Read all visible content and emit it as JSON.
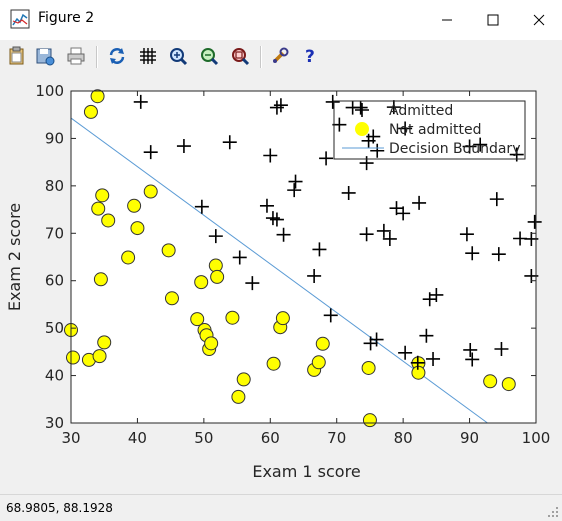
{
  "window": {
    "title": "Figure 2"
  },
  "toolbar": {
    "buttons": [
      "copy-icon",
      "save-icon",
      "print-icon",
      "refresh-icon",
      "grid-icon",
      "zoom-in-icon",
      "zoom-out-icon",
      "zoom-fit-icon",
      "settings-icon",
      "help-icon"
    ]
  },
  "status": {
    "coords": "68.9805,  88.1928"
  },
  "chart_data": {
    "type": "scatter",
    "xlabel": "Exam 1 score",
    "ylabel": "Exam 2 score",
    "xlim": [
      30,
      100
    ],
    "ylim": [
      30,
      100
    ],
    "xticks": [
      30,
      40,
      50,
      60,
      70,
      80,
      90,
      100
    ],
    "yticks": [
      30,
      40,
      50,
      60,
      70,
      80,
      90,
      100
    ],
    "grid": false,
    "legend_position": "top-right",
    "legend": [
      "Admitted",
      "Not admitted",
      "Decision Boundary"
    ],
    "colors": {
      "not_admitted": "#ffff00",
      "boundary": "#5b9bd5",
      "admitted": "#000000"
    },
    "series": [
      {
        "name": "Admitted",
        "marker": "plus",
        "points": [
          [
            40.5,
            97.7
          ],
          [
            42,
            87.1
          ],
          [
            47,
            88.4
          ],
          [
            49.7,
            75.6
          ],
          [
            51.8,
            69.4
          ],
          [
            53.9,
            89.2
          ],
          [
            55.4,
            64.9
          ],
          [
            57.3,
            59.5
          ],
          [
            59.5,
            75.8
          ],
          [
            60,
            86.4
          ],
          [
            60.4,
            73.2
          ],
          [
            61,
            72.9
          ],
          [
            61,
            96.5
          ],
          [
            61.6,
            97.0
          ],
          [
            62,
            69.7
          ],
          [
            63.6,
            79.1
          ],
          [
            63.8,
            80.9
          ],
          [
            66.6,
            61.0
          ],
          [
            67.4,
            66.6
          ],
          [
            68.4,
            85.8
          ],
          [
            69.1,
            52.7
          ],
          [
            69.4,
            97.7
          ],
          [
            70.4,
            92.9
          ],
          [
            71.8,
            78.5
          ],
          [
            72.4,
            96.5
          ],
          [
            73.6,
            96.5
          ],
          [
            74.5,
            84.8
          ],
          [
            74.5,
            69.8
          ],
          [
            74.8,
            89.5
          ],
          [
            75.5,
            90.4
          ],
          [
            76.1,
            87.4
          ],
          [
            75.1,
            46.8
          ],
          [
            76,
            47.6
          ],
          [
            77.1,
            70.5
          ],
          [
            78,
            68.8
          ],
          [
            78.6,
            96.6
          ],
          [
            79,
            75.3
          ],
          [
            80,
            74.2
          ],
          [
            80.3,
            44.8
          ],
          [
            80.3,
            92.1
          ],
          [
            82.2,
            42.7
          ],
          [
            82.4,
            76.4
          ],
          [
            83.5,
            48.4
          ],
          [
            84,
            56.1
          ],
          [
            84.5,
            43.5
          ],
          [
            85,
            57.0
          ],
          [
            89.6,
            69.8
          ],
          [
            90,
            88.3
          ],
          [
            90.1,
            45.4
          ],
          [
            90.4,
            65.8
          ],
          [
            90.4,
            43.4
          ],
          [
            91.6,
            88.7
          ],
          [
            94.1,
            77.2
          ],
          [
            94.4,
            65.6
          ],
          [
            94.8,
            45.6
          ],
          [
            97.1,
            86.6
          ],
          [
            97.6,
            68.9
          ],
          [
            99.3,
            68.8
          ],
          [
            99.3,
            61.0
          ],
          [
            99.8,
            72.4
          ]
        ]
      },
      {
        "name": "Not admitted",
        "marker": "circle",
        "points": [
          [
            30,
            49.6
          ],
          [
            30.3,
            43.8
          ],
          [
            32.7,
            43.3
          ],
          [
            33,
            95.6
          ],
          [
            34,
            98.9
          ],
          [
            34.1,
            75.2
          ],
          [
            34.3,
            44.1
          ],
          [
            34.5,
            60.3
          ],
          [
            34.7,
            78.0
          ],
          [
            35,
            47.0
          ],
          [
            35.6,
            72.7
          ],
          [
            38.6,
            64.9
          ],
          [
            39.5,
            75.8
          ],
          [
            40,
            71.1
          ],
          [
            42,
            78.8
          ],
          [
            44.7,
            66.4
          ],
          [
            45.2,
            56.3
          ],
          [
            49,
            51.9
          ],
          [
            49.6,
            59.7
          ],
          [
            50.1,
            49.6
          ],
          [
            50.4,
            48.5
          ],
          [
            50.8,
            45.6
          ],
          [
            51.1,
            46.8
          ],
          [
            51.8,
            63.2
          ],
          [
            52,
            60.8
          ],
          [
            54.3,
            52.2
          ],
          [
            55.2,
            35.5
          ],
          [
            56,
            39.2
          ],
          [
            60.5,
            42.5
          ],
          [
            61.5,
            50.2
          ],
          [
            61.9,
            52.1
          ],
          [
            66.6,
            41.2
          ],
          [
            67.3,
            42.8
          ],
          [
            67.9,
            46.7
          ],
          [
            74.8,
            41.6
          ],
          [
            75,
            30.6
          ],
          [
            82.3,
            42.6
          ],
          [
            82.3,
            40.6
          ],
          [
            93.1,
            38.8
          ],
          [
            95.9,
            38.2
          ]
        ]
      },
      {
        "name": "Decision Boundary",
        "marker": "line",
        "points": [
          [
            30,
            94.3
          ],
          [
            92.7,
            30
          ]
        ]
      }
    ]
  }
}
